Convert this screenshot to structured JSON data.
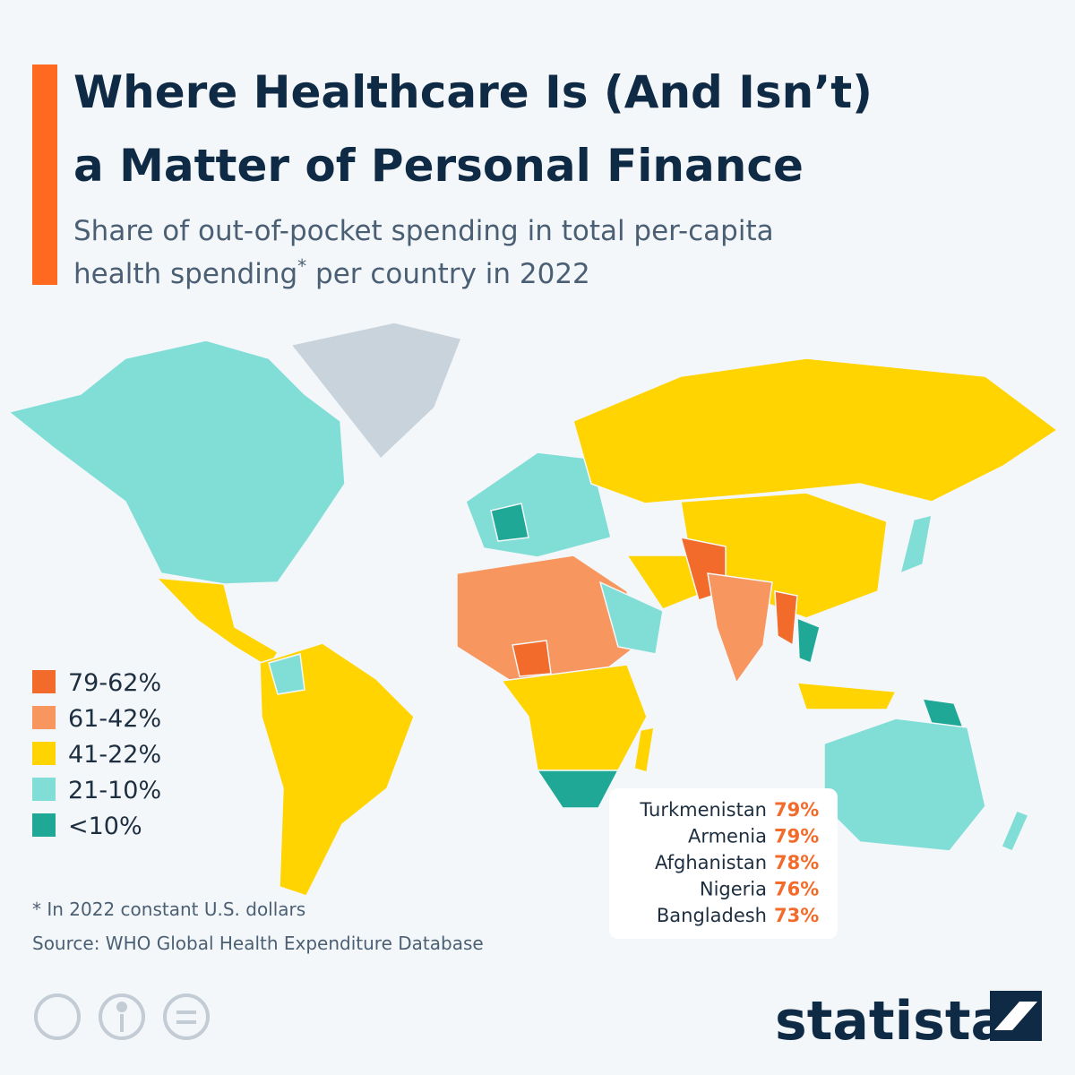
{
  "title_lines": [
    "Where Healthcare Is (And Isn’t)",
    "a Matter of Personal Finance"
  ],
  "subtitle": {
    "line1": "Share of out-of-pocket spending in total per-capita",
    "line2_start": "health spending",
    "mark": "*",
    "line2_end": " per country in 2022"
  },
  "legend": [
    {
      "label": "79-62%",
      "color": "#f26b2a"
    },
    {
      "label": "61-42%",
      "color": "#f7965f"
    },
    {
      "label": "41-22%",
      "color": "#ffd400"
    },
    {
      "label": "21-10%",
      "color": "#80ded6"
    },
    {
      "label": "<10%",
      "color": "#1fa896"
    }
  ],
  "top_countries": [
    {
      "name": "Turkmenistan",
      "value": "79%"
    },
    {
      "name": "Armenia",
      "value": "79%"
    },
    {
      "name": "Afghanistan",
      "value": "78%"
    },
    {
      "name": "Nigeria",
      "value": "76%"
    },
    {
      "name": "Bangladesh",
      "value": "73%"
    }
  ],
  "top_value_color": "#f26b2a",
  "footnote": "* In 2022 constant U.S. dollars",
  "source": "Source: WHO Global Health Expenditure Database",
  "brand": "statista"
}
